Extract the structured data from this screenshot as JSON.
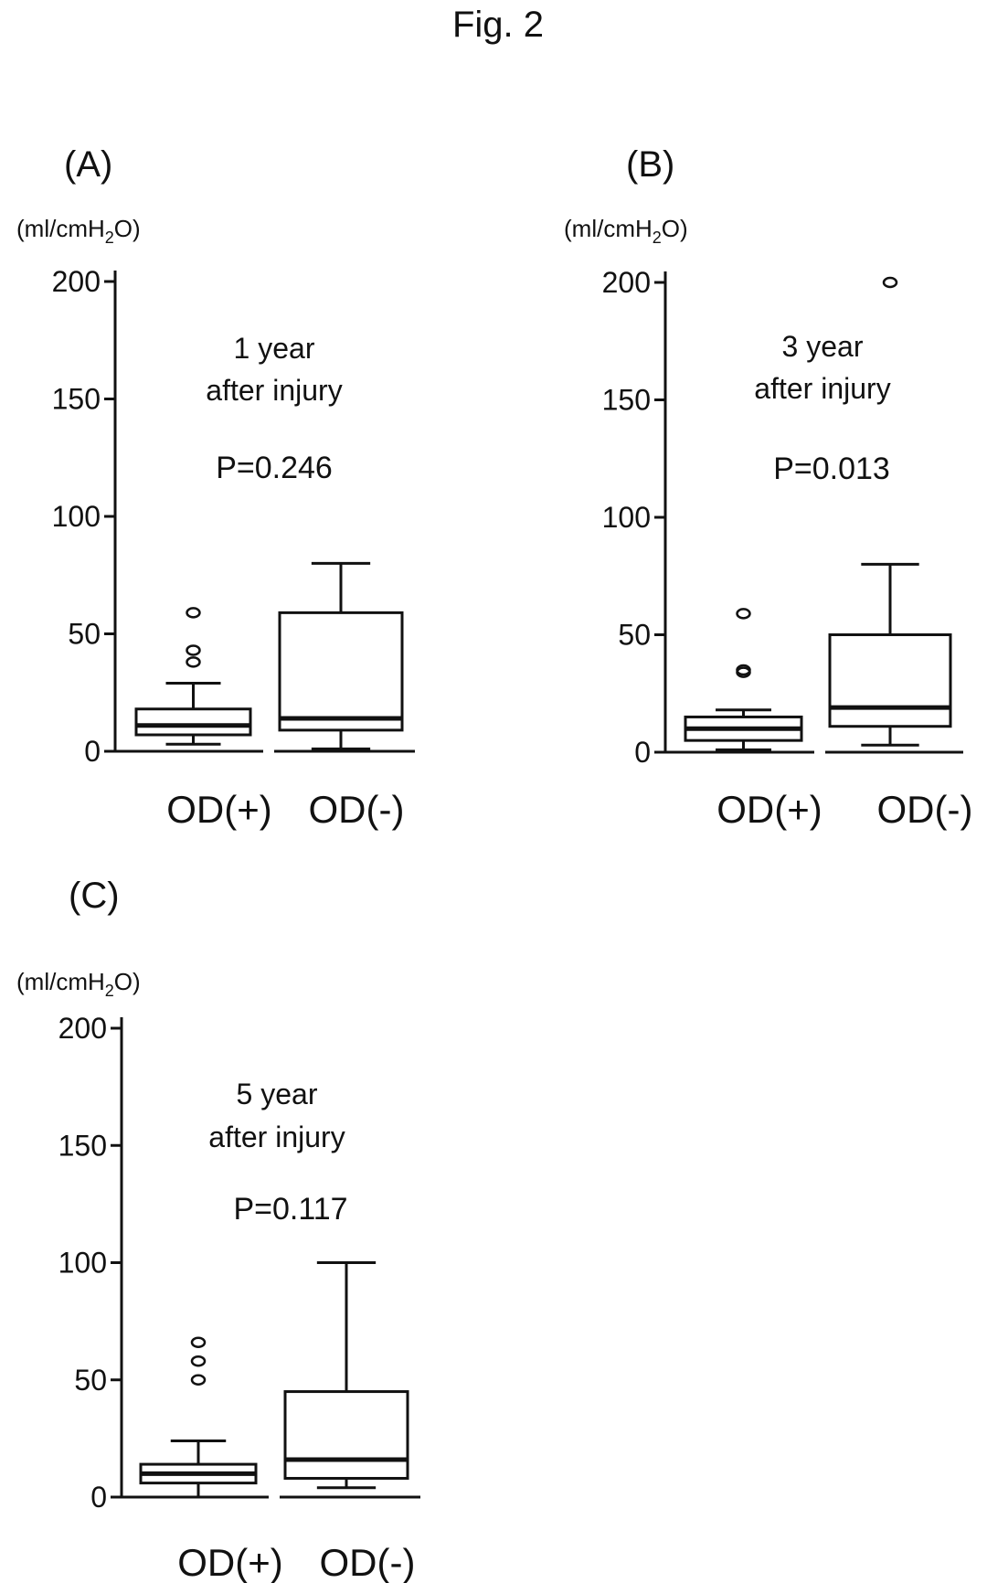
{
  "figure_title": "Fig. 2",
  "chart_data": [
    {
      "type": "box",
      "panel_label": "(A)",
      "ylabel": {
        "prefix": "(ml/cmH",
        "sub": "2",
        "suffix": "O)"
      },
      "ylim": [
        0,
        200
      ],
      "yticks": [
        0,
        50,
        100,
        150,
        200
      ],
      "categories": [
        "OD(+)",
        "OD(-)"
      ],
      "annotation_lines": [
        "1 year",
        "after injury"
      ],
      "p_value": "P=0.246",
      "boxes": [
        {
          "category": "OD(+)",
          "whisker_low": 3,
          "q1": 7,
          "median": 11,
          "q3": 18,
          "whisker_high": 29,
          "outliers": [
            38,
            43,
            59
          ]
        },
        {
          "category": "OD(-)",
          "whisker_low": 1,
          "q1": 9,
          "median": 14,
          "q3": 59,
          "whisker_high": 80,
          "outliers": []
        }
      ]
    },
    {
      "type": "box",
      "panel_label": "(B)",
      "ylabel": {
        "prefix": "(ml/cmH",
        "sub": "2",
        "suffix": "O)"
      },
      "ylim": [
        0,
        200
      ],
      "yticks": [
        0,
        50,
        100,
        150,
        200
      ],
      "categories": [
        "OD(+)",
        "OD(-)"
      ],
      "annotation_lines": [
        "3 year",
        "after injury"
      ],
      "p_value": "P=0.013",
      "boxes": [
        {
          "category": "OD(+)",
          "whisker_low": 1,
          "q1": 5,
          "median": 10,
          "q3": 15,
          "whisker_high": 18,
          "outliers": [
            34,
            35,
            59
          ]
        },
        {
          "category": "OD(-)",
          "whisker_low": 3,
          "q1": 11,
          "median": 19,
          "q3": 50,
          "whisker_high": 80,
          "outliers": [
            200
          ]
        }
      ]
    },
    {
      "type": "box",
      "panel_label": "(C)",
      "ylabel": {
        "prefix": "(ml/cmH",
        "sub": "2",
        "suffix": "O)"
      },
      "ylim": [
        0,
        200
      ],
      "yticks": [
        0,
        50,
        100,
        150,
        200
      ],
      "categories": [
        "OD(+)",
        "OD(-)"
      ],
      "annotation_lines": [
        "5 year",
        "after injury"
      ],
      "p_value": "P=0.117",
      "boxes": [
        {
          "category": "OD(+)",
          "whisker_low": 0,
          "q1": 6,
          "median": 10,
          "q3": 14,
          "whisker_high": 24,
          "outliers": [
            50,
            58,
            66
          ]
        },
        {
          "category": "OD(-)",
          "whisker_low": 4,
          "q1": 8,
          "median": 16,
          "q3": 45,
          "whisker_high": 100,
          "outliers": []
        }
      ]
    }
  ]
}
